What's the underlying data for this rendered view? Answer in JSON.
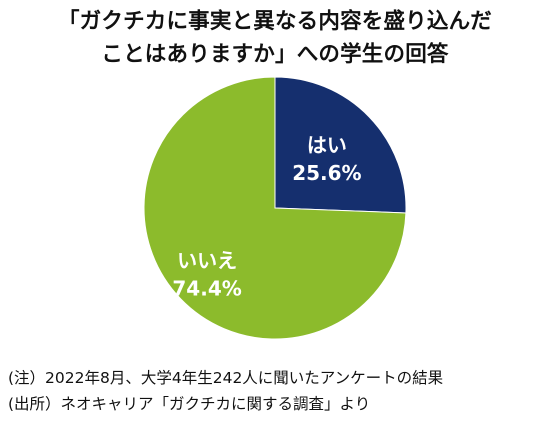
{
  "title_lines": [
    "「ガクチカに事実と異なる内容を盛り込んだ",
    "ことはありますか」への学生の回答"
  ],
  "chart_data": {
    "type": "pie",
    "title": "「ガクチカに事実と異なる内容を盛り込んだことはありますか」への学生の回答",
    "slices": [
      {
        "label": "はい",
        "value": 25.6,
        "value_label": "25.6%",
        "color": "#152f6e"
      },
      {
        "label": "いいえ",
        "value": 74.4,
        "value_label": "74.4%",
        "color": "#8cbb2c"
      }
    ],
    "start": "12 o'clock",
    "direction": "clockwise",
    "legend": "none"
  },
  "notes": {
    "note": "(注）2022年8月、大学4年生242人に聞いたアンケートの結果",
    "source": "(出所）ネオキャリア「ガクチカに関する調査」より"
  }
}
